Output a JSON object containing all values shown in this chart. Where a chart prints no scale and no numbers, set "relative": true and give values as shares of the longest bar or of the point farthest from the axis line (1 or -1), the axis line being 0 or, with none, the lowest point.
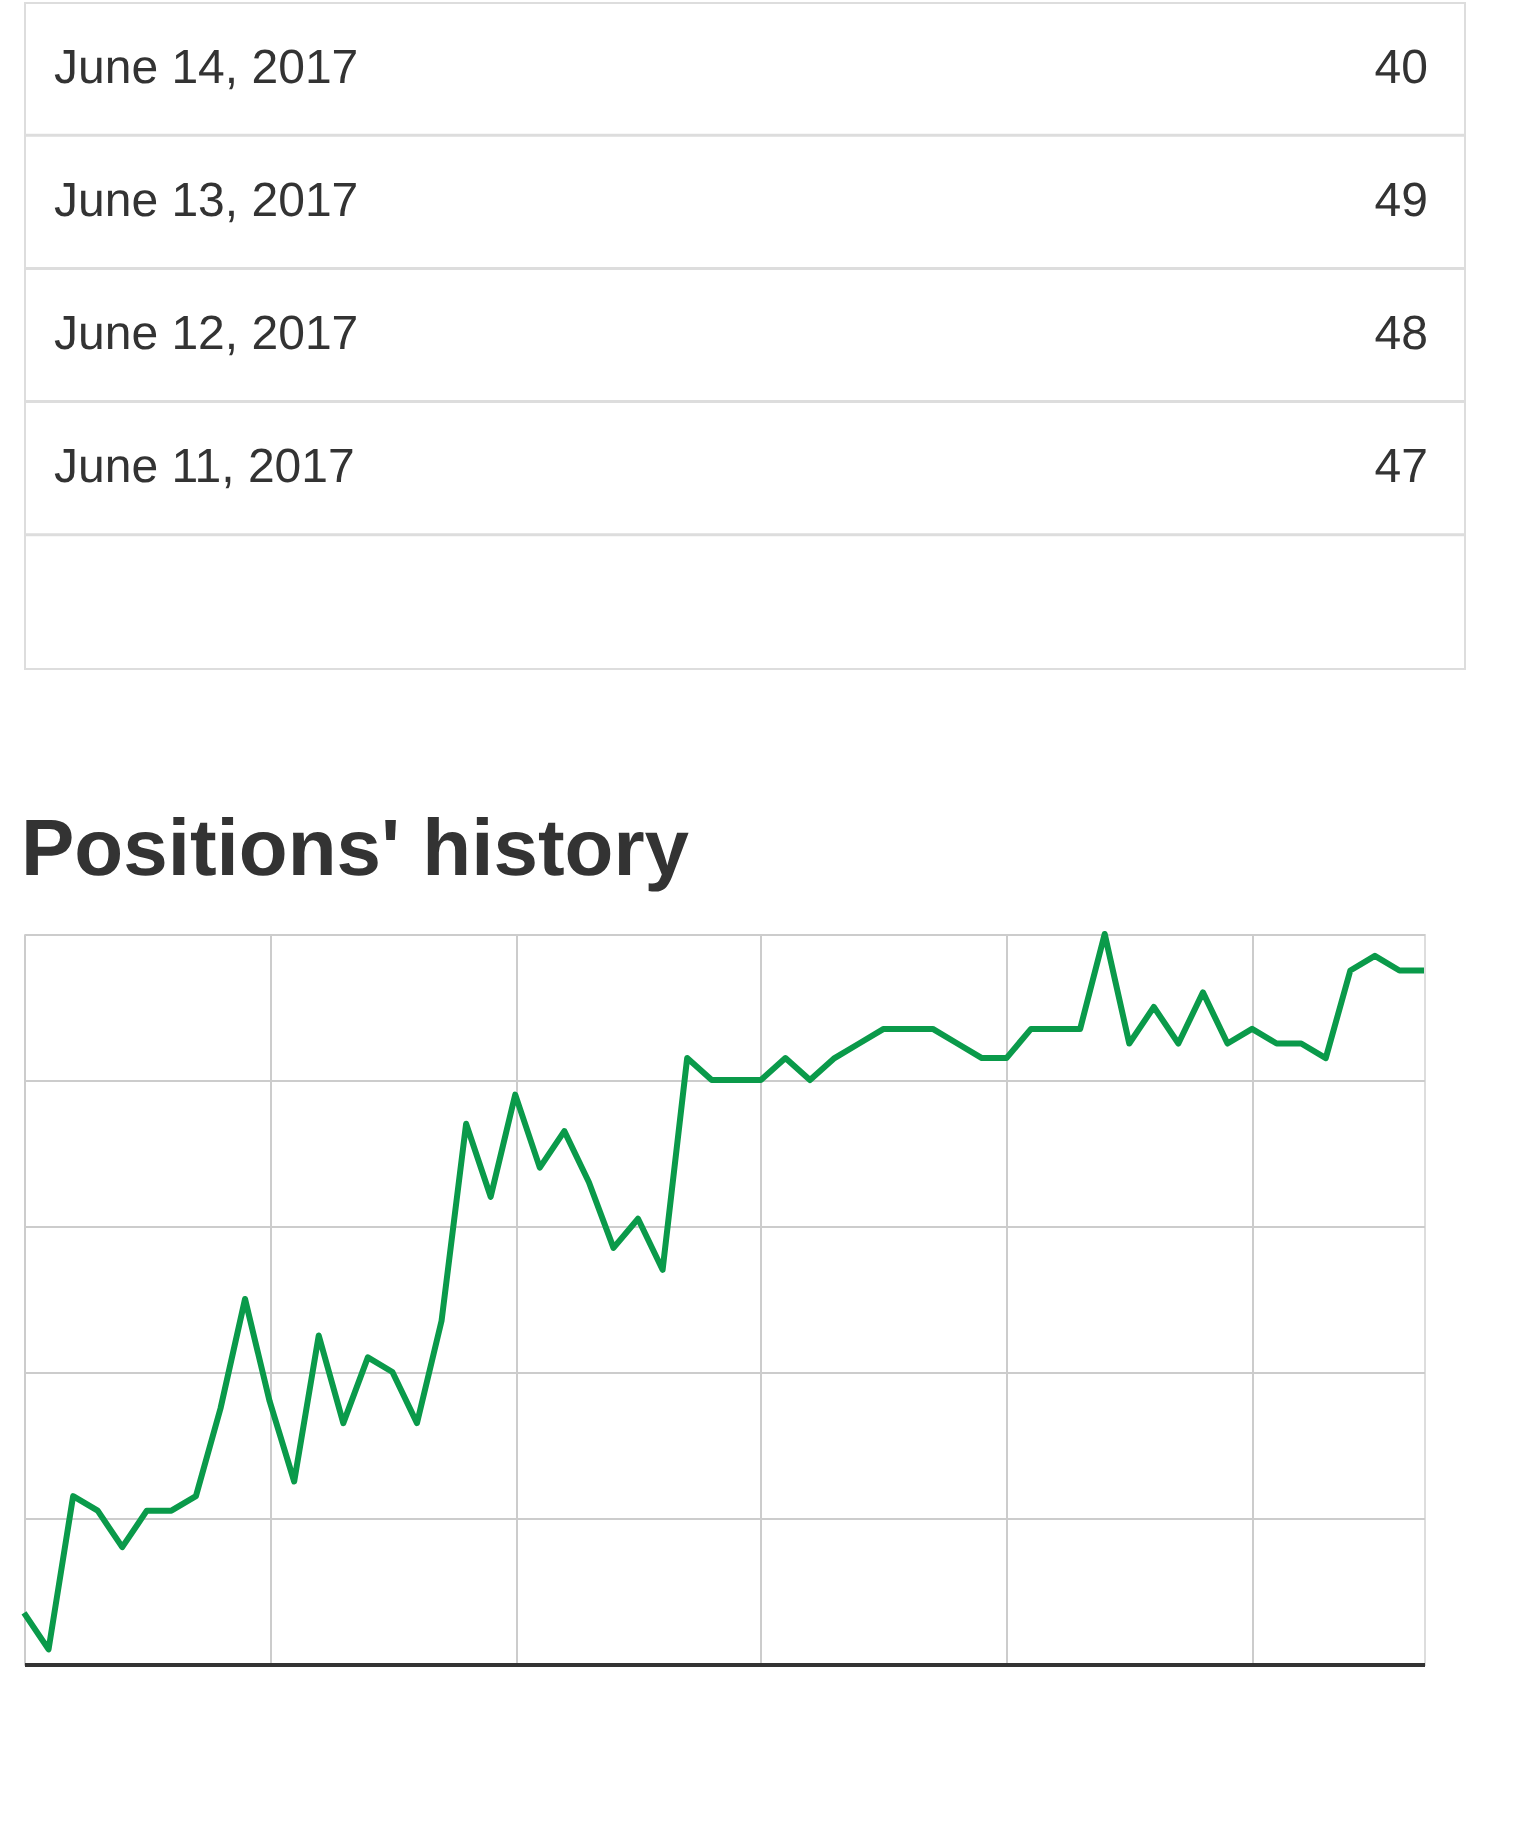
{
  "chart_data": {
    "type": "line",
    "title": "Positions' history",
    "relative": true,
    "grid": true,
    "color": "#0a9a4a",
    "categories": [
      null,
      null,
      null,
      null,
      null,
      null,
      null,
      null,
      null,
      null,
      null,
      null,
      null,
      null,
      null,
      null,
      null,
      null,
      null,
      null,
      null,
      null,
      null,
      null,
      null,
      null,
      null,
      null,
      null,
      null,
      null,
      null,
      null,
      null,
      null,
      null,
      null,
      null,
      null,
      null,
      null,
      null,
      null,
      null,
      null,
      null,
      null,
      null,
      null,
      null,
      null,
      null,
      null,
      null,
      null,
      null,
      null,
      null
    ],
    "values": [
      0.07,
      0.02,
      0.23,
      0.21,
      0.16,
      0.21,
      0.21,
      0.23,
      0.35,
      0.5,
      0.36,
      0.25,
      0.45,
      0.33,
      0.42,
      0.4,
      0.33,
      0.47,
      0.74,
      0.64,
      0.78,
      0.68,
      0.73,
      0.66,
      0.57,
      0.61,
      0.54,
      0.83,
      0.8,
      0.8,
      0.8,
      0.83,
      0.8,
      0.83,
      0.85,
      0.87,
      0.87,
      0.87,
      0.85,
      0.83,
      0.83,
      0.87,
      0.87,
      0.87,
      1,
      0.85,
      0.9,
      0.85,
      0.92,
      0.85,
      0.87,
      0.85,
      0.85,
      0.83,
      0.95,
      0.97,
      0.95,
      0.95
    ],
    "annotations": [
      "June 14, 2017",
      "40",
      "June 13, 2017",
      "49",
      "June 12, 2017",
      "48",
      "June 11, 2017",
      "47"
    ]
  }
}
